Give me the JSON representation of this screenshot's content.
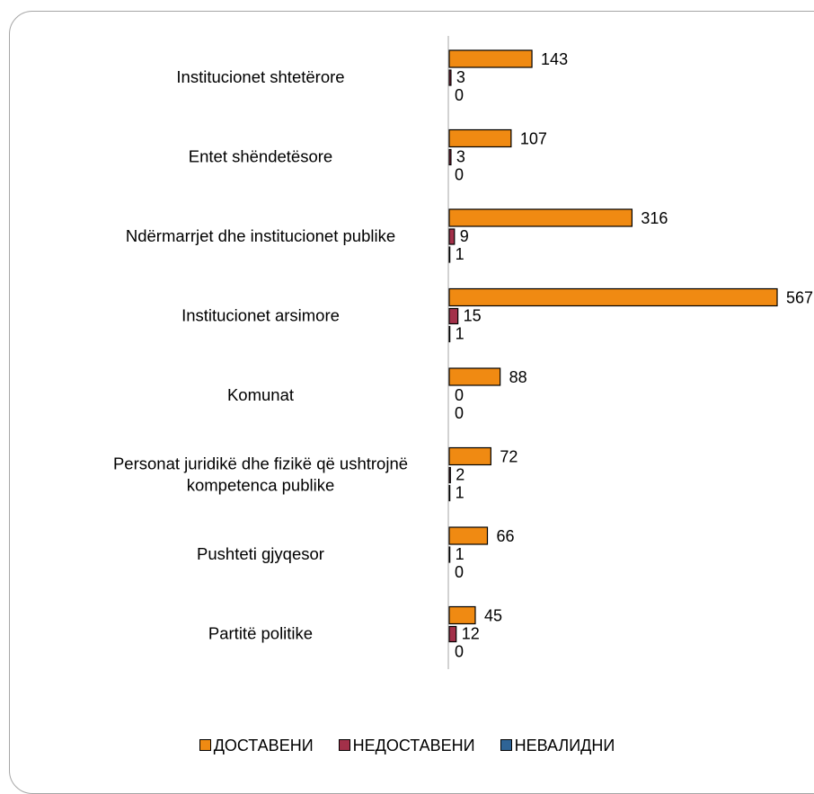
{
  "chart_data": {
    "type": "bar",
    "orientation": "horizontal",
    "categories": [
      "Institucionet shtetërore",
      "Entet shëndetësore",
      "Ndërmarrjet dhe institucionet publike",
      "Institucionet arsimore",
      "Komunat",
      "Personat juridikë dhe fizikë që ushtrojnë kompetenca publike",
      "Pushteti gjyqesor",
      "Partitë politike"
    ],
    "category_lines": [
      [
        "Institucionet shtetërore"
      ],
      [
        "Entet shëndetësore"
      ],
      [
        "Ndërmarrjet dhe institucionet publike"
      ],
      [
        "Institucionet arsimore"
      ],
      [
        "Komunat"
      ],
      [
        "Personat juridikë dhe fizikë që ushtrojnë",
        "kompetenca publike"
      ],
      [
        "Pushteti gjyqesor"
      ],
      [
        "Partitë politike"
      ]
    ],
    "series": [
      {
        "name": "ДОСТАВЕНИ",
        "color": "#f08a12",
        "values": [
          143,
          107,
          316,
          567,
          88,
          72,
          66,
          45
        ]
      },
      {
        "name": "НЕДОСТАВЕНИ",
        "color": "#a33049",
        "values": [
          3,
          3,
          9,
          15,
          0,
          2,
          1,
          12
        ]
      },
      {
        "name": "НЕВАЛИДНИ",
        "color": "#2f6496",
        "values": [
          0,
          0,
          1,
          1,
          0,
          1,
          0,
          0
        ]
      }
    ],
    "xlim": [
      0,
      567
    ],
    "grid": false,
    "legend_position": "bottom"
  }
}
